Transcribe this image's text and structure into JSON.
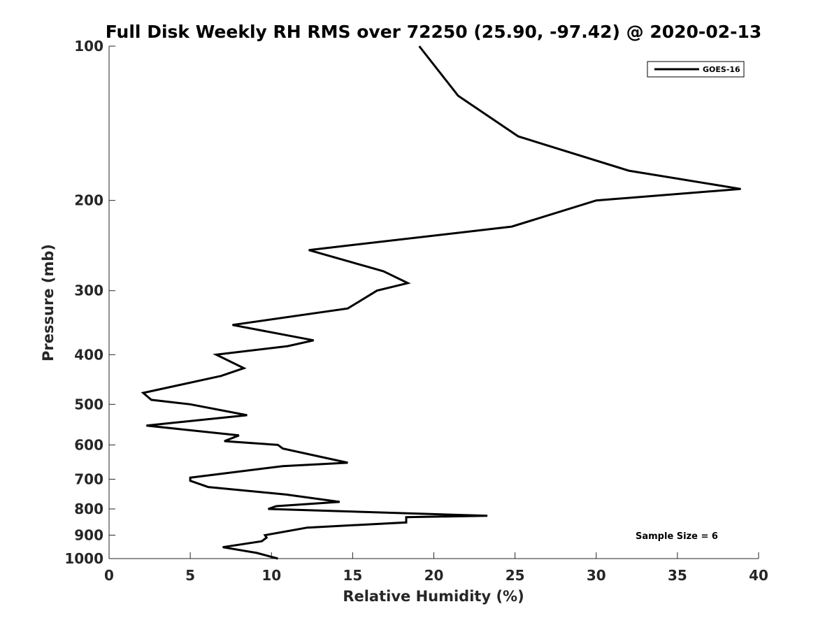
{
  "chart_data": {
    "type": "line",
    "title": "Full Disk Weekly RH RMS over 72250 (25.90, -97.42) @ 2020-02-13",
    "xlabel": "Relative Humidity (%)",
    "ylabel": "Pressure (mb)",
    "xlim": [
      0,
      40
    ],
    "ylim": [
      100,
      1000
    ],
    "y_scale": "log",
    "y_inverted": true,
    "x_ticks": [
      0,
      5,
      10,
      15,
      20,
      25,
      30,
      35,
      40
    ],
    "y_ticks": [
      100,
      200,
      300,
      400,
      500,
      600,
      700,
      800,
      900,
      1000
    ],
    "grid": false,
    "legend_position": "top-right",
    "annotation": "Sample Size = 6",
    "series": [
      {
        "name": "GOES-16",
        "color": "#000000",
        "points": [
          [
            19.1,
            100
          ],
          [
            21.5,
            125
          ],
          [
            25.2,
            150
          ],
          [
            32.0,
            175
          ],
          [
            38.9,
            190
          ],
          [
            30.0,
            200
          ],
          [
            24.8,
            225
          ],
          [
            12.3,
            250
          ],
          [
            16.9,
            275
          ],
          [
            18.4,
            290
          ],
          [
            16.5,
            300
          ],
          [
            14.7,
            325
          ],
          [
            7.6,
            350
          ],
          [
            12.6,
            375
          ],
          [
            11.0,
            385
          ],
          [
            6.6,
            400
          ],
          [
            8.3,
            425
          ],
          [
            6.9,
            440
          ],
          [
            2.1,
            475
          ],
          [
            2.6,
            490
          ],
          [
            5.0,
            500
          ],
          [
            8.5,
            525
          ],
          [
            2.3,
            550
          ],
          [
            8.0,
            575
          ],
          [
            7.1,
            590
          ],
          [
            10.4,
            600
          ],
          [
            10.7,
            610
          ],
          [
            14.7,
            650
          ],
          [
            10.7,
            660
          ],
          [
            5.0,
            695
          ],
          [
            5.0,
            705
          ],
          [
            6.1,
            725
          ],
          [
            10.9,
            750
          ],
          [
            14.2,
            775
          ],
          [
            10.3,
            790
          ],
          [
            9.8,
            800
          ],
          [
            23.3,
            825
          ],
          [
            18.3,
            830
          ],
          [
            18.3,
            850
          ],
          [
            12.2,
            870
          ],
          [
            9.6,
            900
          ],
          [
            9.7,
            910
          ],
          [
            9.4,
            925
          ],
          [
            7.0,
            950
          ],
          [
            9.1,
            975
          ],
          [
            10.4,
            1000
          ]
        ]
      }
    ]
  }
}
